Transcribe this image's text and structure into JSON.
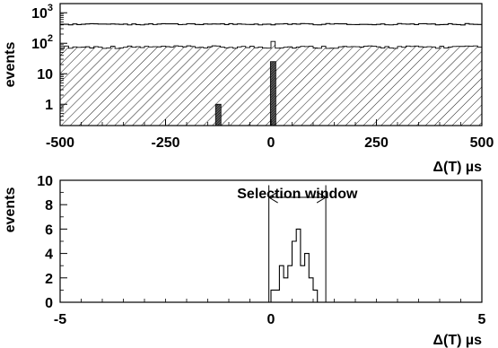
{
  "chart_data": [
    {
      "type": "bar",
      "panel": "top",
      "ylabel": "events",
      "xlabel": "Δ(T) µs",
      "xlim": [
        -500,
        500
      ],
      "ylim": [
        0.2,
        2000
      ],
      "yscale": "log",
      "xticks": [
        "-500",
        "-250",
        "0",
        "250",
        "500"
      ],
      "yticks": [
        {
          "base": "10",
          "exp": "3",
          "value": 1000
        },
        {
          "base": "10",
          "exp": "2",
          "value": 100
        },
        {
          "base": "10",
          "exp": "",
          "value": 10
        },
        {
          "base": "1",
          "exp": "",
          "value": 1
        }
      ],
      "series": [
        {
          "style": "open-histogram",
          "approx_level": 420
        },
        {
          "style": "hatched-histogram",
          "approx_level": 75,
          "peak": {
            "x": 5,
            "value": 115
          }
        },
        {
          "style": "dark-bars",
          "bars": [
            {
              "x": -125,
              "value": 1.0
            },
            {
              "x": 5,
              "value": 25
            }
          ]
        }
      ]
    },
    {
      "type": "bar",
      "panel": "bottom",
      "ylabel": "events",
      "xlabel": "Δ(T) µs",
      "xlim": [
        -5,
        5
      ],
      "ylim": [
        0,
        10
      ],
      "xticks": [
        "-5",
        "0",
        "5"
      ],
      "yticks": [
        "0",
        "2",
        "4",
        "6",
        "8",
        "10"
      ],
      "bin_width": 0.1,
      "bins": [
        {
          "x": 0.0,
          "value": 1
        },
        {
          "x": 0.1,
          "value": 1
        },
        {
          "x": 0.2,
          "value": 3
        },
        {
          "x": 0.3,
          "value": 2
        },
        {
          "x": 0.4,
          "value": 3
        },
        {
          "x": 0.5,
          "value": 5
        },
        {
          "x": 0.6,
          "value": 6
        },
        {
          "x": 0.7,
          "value": 3
        },
        {
          "x": 0.8,
          "value": 4
        },
        {
          "x": 0.9,
          "value": 2
        },
        {
          "x": 1.0,
          "value": 1
        }
      ],
      "annotation": {
        "text": "Selection window",
        "x_from": -0.05,
        "x_to": 1.3
      }
    }
  ]
}
